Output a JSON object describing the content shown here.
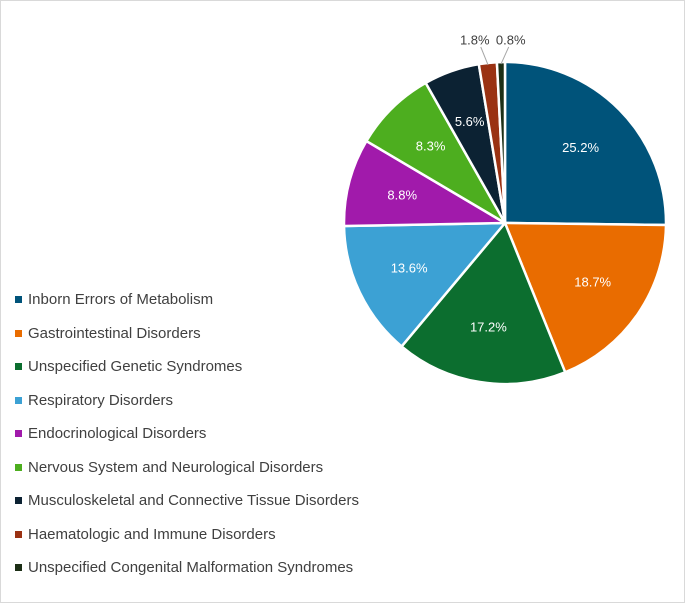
{
  "chart_data": {
    "type": "pie",
    "title": "",
    "legend_position": "left",
    "slices": [
      {
        "label": "Inborn Errors of Metabolism",
        "value": 25.2,
        "value_label": "25.2%",
        "color": "#00537a"
      },
      {
        "label": "Gastrointestinal Disorders",
        "value": 18.7,
        "value_label": "18.7%",
        "color": "#e96c00"
      },
      {
        "label": "Unspecified Genetic Syndromes",
        "value": 17.2,
        "value_label": "17.2%",
        "color": "#0c6e2f"
      },
      {
        "label": "Respiratory Disorders",
        "value": 13.6,
        "value_label": "13.6%",
        "color": "#3ca1d4"
      },
      {
        "label": "Endocrinological Disorders",
        "value": 8.8,
        "value_label": "8.8%",
        "color": "#a11aab"
      },
      {
        "label": "Nervous System and Neurological Disorders",
        "value": 8.3,
        "value_label": "8.3%",
        "color": "#4dae1f"
      },
      {
        "label": "Musculoskeletal and Connective Tissue Disorders",
        "value": 5.6,
        "value_label": "5.6%",
        "color": "#0c2233"
      },
      {
        "label": "Haematologic and Immune Disorders",
        "value": 1.8,
        "value_label": "1.8%",
        "color": "#9a3213"
      },
      {
        "label": "Unspecified Congenital Malformation Syndromes",
        "value": 0.8,
        "value_label": "0.8%",
        "color": "#1c2f16"
      }
    ]
  }
}
